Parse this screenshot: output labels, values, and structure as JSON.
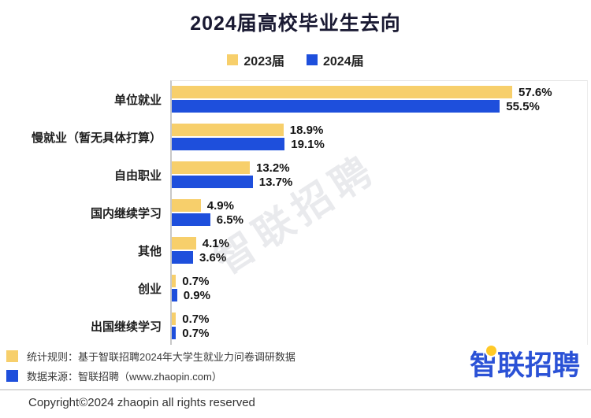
{
  "title": "2024届高校毕业生去向",
  "chart_data": {
    "type": "bar",
    "orientation": "horizontal",
    "title": "2024届高校毕业生去向",
    "categories": [
      "单位就业",
      "慢就业（暂无具体打算）",
      "自由职业",
      "国内继续学习",
      "其他",
      "创业",
      "出国继续学习"
    ],
    "series": [
      {
        "name": "2023届",
        "color": "#F7CF6B",
        "values": [
          57.6,
          18.9,
          13.2,
          4.9,
          4.1,
          0.7,
          0.7
        ]
      },
      {
        "name": "2024届",
        "color": "#1E4FDC",
        "values": [
          55.5,
          19.1,
          13.7,
          6.5,
          3.6,
          0.9,
          0.7
        ]
      }
    ],
    "value_suffix": "%",
    "xlim": [
      0,
      60
    ],
    "grid": false,
    "legend_position": "top",
    "data_labels": true
  },
  "watermark": "智联招聘",
  "footnotes": [
    {
      "color": "#F7CF6B",
      "text": "统计规则：基于智联招聘2024年大学生就业力问卷调研数据"
    },
    {
      "color": "#1E4FDC",
      "text": "数据来源：智联招聘（www.zhaopin.com）"
    }
  ],
  "logo_text": "智联招聘",
  "logo_colors": {
    "text": "#2B52D6",
    "dot": "#FFC928"
  },
  "copyright": "Copyright©2024 zhaopin all rights reserved"
}
